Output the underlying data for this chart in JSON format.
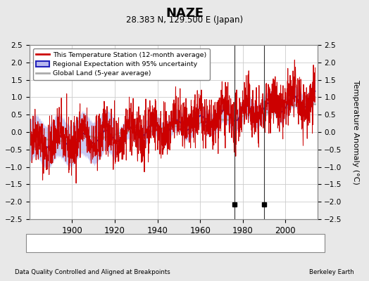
{
  "title": "NAZE",
  "subtitle": "28.383 N, 129.500 E (Japan)",
  "ylabel": "Temperature Anomaly (°C)",
  "xlabel_left": "Data Quality Controlled and Aligned at Breakpoints",
  "xlabel_right": "Berkeley Earth",
  "ylim": [
    -2.5,
    2.5
  ],
  "xlim": [
    1880,
    2015
  ],
  "yticks": [
    -2.5,
    -2,
    -1.5,
    -1,
    -0.5,
    0,
    0.5,
    1,
    1.5,
    2,
    2.5
  ],
  "xticks": [
    1900,
    1920,
    1940,
    1960,
    1980,
    2000
  ],
  "bg_color": "#e8e8e8",
  "plot_bg_color": "#ffffff",
  "grid_color": "#cccccc",
  "empirical_break_years": [
    1976,
    1990
  ],
  "empirical_break_y": -2.08,
  "vertical_line_years": [
    1976,
    1990
  ],
  "red_line_color": "#cc0000",
  "blue_line_color": "#2222bb",
  "blue_fill_color": "#b8b8ee",
  "gray_line_color": "#aaaaaa",
  "random_seed": 42,
  "years_start": 1880,
  "years_end": 2014
}
